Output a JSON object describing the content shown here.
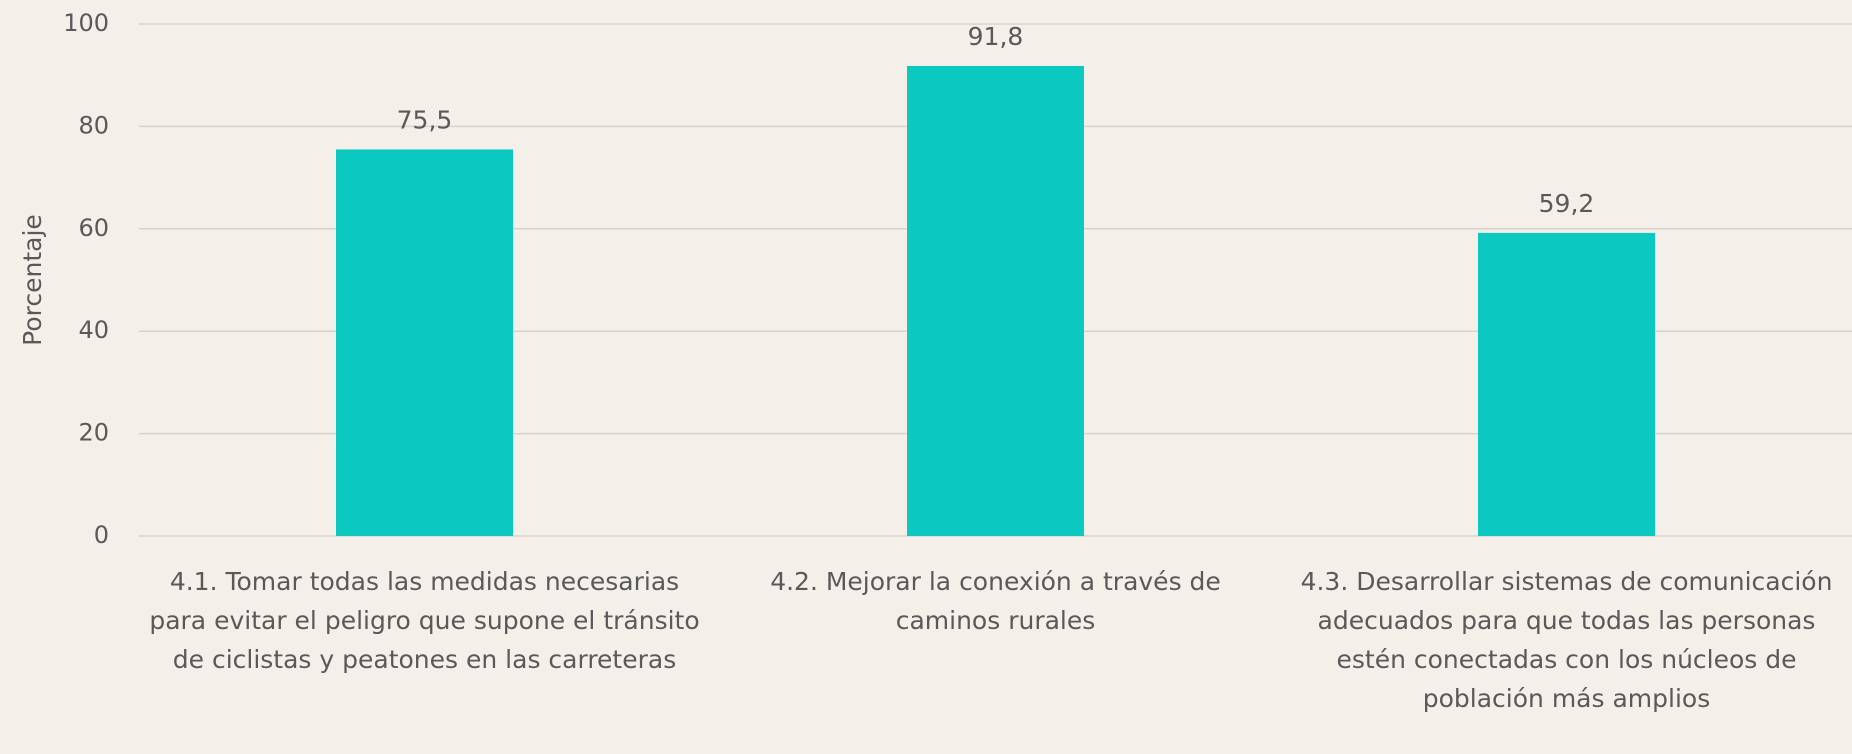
{
  "chart_data": {
    "type": "bar",
    "y_label": "Porcentaje",
    "categories": [
      "4.1. Tomar todas las medidas necesarias para evitar el peligro que supone el tránsito de ciclistas y peatones en las carreteras",
      "4.2. Mejorar la conexión a través de caminos rurales",
      "4.3. Desarrollar sistemas de comunicación adecuados para que todas las personas estén conectadas con los núcleos de población más amplios"
    ],
    "values": [
      75.5,
      91.8,
      59.2
    ],
    "value_labels": [
      "75,5",
      "91,8",
      "59,2"
    ],
    "color": "#0bc9c0",
    "ylim": [
      0,
      100
    ],
    "yticks": [
      0,
      20,
      40,
      60,
      80,
      100
    ],
    "grid": true
  }
}
